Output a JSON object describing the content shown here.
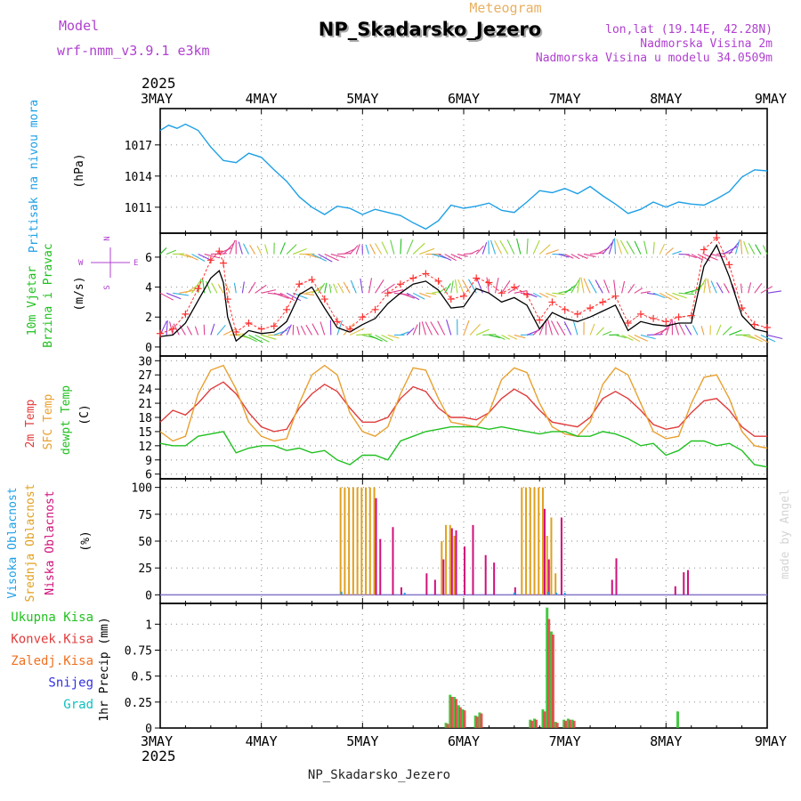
{
  "header": {
    "model_label": "Model",
    "model_name": "wrf-nmm_v3.9.1 e3km",
    "meteogram_label": "Meteogram",
    "station": "NP_Skadarsko_Jezero",
    "lonlat": "lon,lat (19.14E, 42.28N)",
    "elevation": "Nadmorska Visina 2m",
    "model_elevation": "Nadmorska Visina u modelu 34.0509m",
    "year": "2025",
    "footer_station": "NP_Skadarsko_Jezero",
    "credit": "made by Angel"
  },
  "colors": {
    "pressure": "#1ea0e6",
    "wind_speed": "#000000",
    "wind_gust": "#ff3030",
    "temp2m": "#e03c3c",
    "sfc_temp": "#e8a030",
    "dewpoint": "#20c020",
    "cloud_high": "#1ea0e6",
    "cloud_mid": "#e0a020",
    "cloud_low": "#d0107a",
    "precip_total": "#22c022",
    "precip_conv": "#e03c3c",
    "precip_frozen": "#f07020",
    "precip_snow": "#3030e0",
    "precip_graupel": "#10c0c0",
    "model_text": "#b040d0",
    "meteogram_text": "#e8b060",
    "grid": "#999999"
  },
  "x_axis": {
    "days": [
      "3MAY",
      "4MAY",
      "5MAY",
      "6MAY",
      "7MAY",
      "8MAY",
      "9MAY"
    ]
  },
  "chart_data": [
    {
      "type": "line",
      "panel": "pressure",
      "ylabel_main": "Pritisak na nivou mora",
      "ylabel_unit": "(hPa)",
      "yticks": [
        1011,
        1014,
        1017
      ],
      "ylim": [
        1008.5,
        1020.5
      ],
      "series": [
        {
          "name": "MSLP",
          "hours": [
            0,
            2,
            4,
            6,
            9,
            12,
            15,
            18,
            21,
            24,
            27,
            30,
            33,
            36,
            39,
            42,
            45,
            48,
            51,
            54,
            57,
            60,
            63,
            66,
            69,
            72,
            75,
            78,
            81,
            84,
            87,
            90,
            93,
            96,
            99,
            102,
            105,
            108,
            111,
            114,
            117,
            120,
            123,
            126,
            129,
            132,
            135,
            138,
            141,
            144
          ],
          "values": [
            1018.4,
            1018.9,
            1018.6,
            1019.0,
            1018.4,
            1016.8,
            1015.5,
            1015.3,
            1016.2,
            1015.8,
            1014.6,
            1013.5,
            1012.0,
            1011.0,
            1010.3,
            1011.1,
            1010.9,
            1010.3,
            1010.8,
            1010.5,
            1010.2,
            1009.5,
            1008.9,
            1009.7,
            1011.2,
            1010.9,
            1011.1,
            1011.4,
            1010.7,
            1010.5,
            1011.5,
            1012.6,
            1012.4,
            1012.8,
            1012.3,
            1013.0,
            1012.1,
            1011.3,
            1010.4,
            1010.8,
            1011.5,
            1011.0,
            1011.5,
            1011.3,
            1011.2,
            1011.8,
            1012.5,
            1013.9,
            1014.6,
            1014.5
          ]
        }
      ]
    },
    {
      "type": "line",
      "panel": "wind",
      "ylabel_main": "10m Vjetar",
      "ylabel_main2": "Brzina i Pravac",
      "ylabel_unit": "(m/s)",
      "compass": {
        "n": "N",
        "w": "W",
        "e": "E",
        "s": "S"
      },
      "yticks": [
        0,
        2,
        4,
        6
      ],
      "ylim": [
        -0.6,
        7.6
      ],
      "series": [
        {
          "name": "Wind speed",
          "hours": [
            0,
            3,
            6,
            9,
            12,
            14,
            15,
            16,
            18,
            21,
            24,
            27,
            30,
            33,
            36,
            39,
            42,
            45,
            48,
            51,
            54,
            57,
            60,
            63,
            66,
            69,
            72,
            75,
            78,
            81,
            84,
            87,
            90,
            93,
            96,
            99,
            102,
            105,
            108,
            111,
            114,
            117,
            120,
            123,
            126,
            129,
            132,
            135,
            138,
            141,
            144
          ],
          "values": [
            0.7,
            0.8,
            1.6,
            3.1,
            4.6,
            5.1,
            4.3,
            2.0,
            0.4,
            1.1,
            0.9,
            1.0,
            1.7,
            3.5,
            4.0,
            2.6,
            1.3,
            1.0,
            1.5,
            1.9,
            2.9,
            3.6,
            4.2,
            4.4,
            3.8,
            2.6,
            2.7,
            3.9,
            3.6,
            3.0,
            3.3,
            2.8,
            1.2,
            2.3,
            1.9,
            1.7,
            2.0,
            2.4,
            2.8,
            1.1,
            1.7,
            1.5,
            1.4,
            1.6,
            1.6,
            5.4,
            6.8,
            4.7,
            2.1,
            1.2,
            1.0
          ]
        },
        {
          "name": "Wind gust",
          "hours": [
            0,
            3,
            6,
            9,
            12,
            14,
            15,
            16,
            18,
            21,
            24,
            27,
            30,
            33,
            36,
            39,
            42,
            45,
            48,
            51,
            54,
            57,
            60,
            63,
            66,
            69,
            72,
            75,
            78,
            81,
            84,
            87,
            90,
            93,
            96,
            99,
            102,
            105,
            108,
            111,
            114,
            117,
            120,
            123,
            126,
            129,
            132,
            135,
            138,
            141,
            144
          ],
          "values": [
            0.9,
            1.2,
            2.2,
            3.9,
            5.8,
            6.4,
            5.6,
            3.2,
            1.0,
            1.6,
            1.2,
            1.4,
            2.5,
            4.2,
            4.5,
            3.2,
            1.7,
            1.2,
            2.0,
            2.5,
            3.6,
            4.2,
            4.6,
            4.9,
            4.4,
            3.2,
            3.4,
            4.6,
            4.3,
            3.6,
            4.0,
            3.5,
            1.8,
            3.0,
            2.5,
            2.2,
            2.6,
            3.0,
            3.4,
            1.6,
            2.2,
            1.9,
            1.7,
            2.0,
            2.1,
            6.5,
            7.3,
            5.5,
            2.6,
            1.5,
            1.3
          ]
        }
      ]
    },
    {
      "type": "line",
      "panel": "temperature",
      "ylabel_main": "2m Temp",
      "ylabel_main2": "SFC Temp",
      "ylabel_main3": "dewpt Temp",
      "ylabel_unit": "(C)",
      "yticks": [
        6,
        9,
        12,
        15,
        18,
        21,
        24,
        27,
        30
      ],
      "ylim": [
        5,
        31
      ],
      "series": [
        {
          "name": "2m Temp",
          "hours": [
            0,
            3,
            6,
            9,
            12,
            15,
            18,
            21,
            24,
            27,
            30,
            33,
            36,
            39,
            42,
            45,
            48,
            51,
            54,
            57,
            60,
            63,
            66,
            69,
            72,
            75,
            78,
            81,
            84,
            87,
            90,
            93,
            96,
            99,
            102,
            105,
            108,
            111,
            114,
            117,
            120,
            123,
            126,
            129,
            132,
            135,
            138,
            141,
            144
          ],
          "values": [
            17,
            19.5,
            18.5,
            21,
            24,
            25.5,
            23,
            19,
            16,
            15,
            15.5,
            20,
            23,
            25,
            23.5,
            20,
            17,
            17,
            18,
            22,
            24.5,
            23.5,
            20,
            18,
            18,
            17.5,
            19,
            22,
            24,
            22.5,
            19.5,
            17,
            16.5,
            16,
            18,
            22,
            23.5,
            22,
            19.5,
            16.5,
            15.5,
            16,
            19,
            21.5,
            22,
            19.5,
            16,
            14,
            14
          ]
        },
        {
          "name": "SFC Temp",
          "hours": [
            0,
            3,
            6,
            9,
            12,
            15,
            18,
            21,
            24,
            27,
            30,
            33,
            36,
            39,
            42,
            45,
            48,
            51,
            54,
            57,
            60,
            63,
            66,
            69,
            72,
            75,
            78,
            81,
            84,
            87,
            90,
            93,
            96,
            99,
            102,
            105,
            108,
            111,
            114,
            117,
            120,
            123,
            126,
            129,
            132,
            135,
            138,
            141,
            144
          ],
          "values": [
            15,
            13,
            14,
            23,
            28,
            29,
            24,
            17,
            14,
            13,
            13.5,
            21,
            27,
            29,
            27,
            19,
            15,
            14,
            16,
            23,
            28.5,
            28,
            22,
            17,
            16.5,
            16,
            19,
            26,
            28.5,
            27.5,
            21,
            16,
            14.5,
            14,
            17,
            25,
            28.5,
            27,
            21,
            15,
            13.5,
            14,
            21,
            26.5,
            27,
            22,
            15,
            12,
            11.5
          ]
        },
        {
          "name": "dewpt Temp",
          "hours": [
            0,
            3,
            6,
            9,
            12,
            15,
            18,
            21,
            24,
            27,
            30,
            33,
            36,
            39,
            42,
            45,
            48,
            51,
            54,
            57,
            60,
            63,
            66,
            69,
            72,
            75,
            78,
            81,
            84,
            87,
            90,
            93,
            96,
            99,
            102,
            105,
            108,
            111,
            114,
            117,
            120,
            123,
            126,
            129,
            132,
            135,
            138,
            141,
            144
          ],
          "values": [
            12.5,
            12,
            12,
            14,
            14.5,
            15,
            10.5,
            11.5,
            12,
            12,
            11,
            11.5,
            10.5,
            11,
            9,
            8,
            10,
            10,
            9,
            13,
            14,
            15,
            15.5,
            16,
            16,
            16,
            15.5,
            16,
            15.5,
            15,
            14.5,
            15,
            15,
            14,
            14,
            15,
            14.5,
            13.5,
            12,
            12.5,
            10,
            11,
            13,
            13,
            12,
            12.5,
            11,
            8,
            7.5
          ]
        }
      ]
    },
    {
      "type": "bar",
      "panel": "clouds",
      "ylabel_main": "Visoka Oblacnost",
      "ylabel_main2": "Srednja Oblacnost",
      "ylabel_main3": "Niska Oblacnost",
      "ylabel_unit": "(%)",
      "yticks": [
        0,
        25,
        50,
        75,
        100
      ],
      "ylim": [
        -8,
        108
      ],
      "series": [
        {
          "name": "Srednja Oblacnost",
          "hours": [
            43,
            44,
            45,
            46,
            47,
            48,
            49,
            50,
            51,
            67,
            68,
            69,
            70,
            86,
            87,
            88,
            89,
            90,
            91,
            92,
            93,
            94
          ],
          "values": [
            100,
            100,
            100,
            100,
            100,
            100,
            100,
            100,
            100,
            50,
            65,
            65,
            55,
            100,
            100,
            100,
            100,
            100,
            100,
            55,
            72,
            20
          ]
        },
        {
          "name": "Niska Oblacnost",
          "hours": [
            51,
            52,
            55,
            57,
            63,
            65,
            67,
            69,
            70,
            72,
            74,
            77,
            79,
            84,
            91,
            92,
            95,
            107,
            108,
            122,
            124,
            125
          ],
          "values": [
            90,
            52,
            63,
            7,
            20,
            14,
            33,
            62,
            60,
            45,
            65,
            37,
            30,
            7,
            80,
            33,
            72,
            14,
            34,
            8,
            21,
            23
          ]
        },
        {
          "name": "Visoka Oblacnost",
          "hours": [
            43,
            58,
            84,
            92,
            94,
            96
          ],
          "values": [
            3,
            2,
            2,
            3,
            2,
            2
          ]
        }
      ]
    },
    {
      "type": "bar",
      "panel": "precipitation",
      "legend": [
        "Ukupna Kisa",
        "Konvek.Kisa",
        "Zaledj.Kisa",
        "Snijeg",
        "Grad"
      ],
      "ylabel_unit": "1hr Precip (mm)",
      "yticks": [
        0,
        0.25,
        0.5,
        0.75,
        1
      ],
      "ylim": [
        0,
        1.2
      ],
      "series": [
        {
          "name": "Ukupna Kisa",
          "hours": [
            68,
            69,
            70,
            71,
            72,
            75,
            76,
            88,
            89,
            91,
            92,
            93,
            94,
            96,
            97,
            98,
            123
          ],
          "values": [
            0.05,
            0.32,
            0.3,
            0.22,
            0.18,
            0.12,
            0.15,
            0.08,
            0.09,
            0.18,
            1.16,
            0.93,
            0.06,
            0.08,
            0.09,
            0.08,
            0.16
          ]
        },
        {
          "name": "Konvek.Kisa",
          "hours": [
            68,
            69,
            70,
            71,
            72,
            75,
            76,
            88,
            89,
            91,
            92,
            93,
            94,
            96,
            97,
            98
          ],
          "values": [
            0.04,
            0.3,
            0.28,
            0.2,
            0.17,
            0.11,
            0.14,
            0.07,
            0.08,
            0.16,
            1.05,
            0.9,
            0.05,
            0.07,
            0.08,
            0.07
          ]
        }
      ]
    }
  ]
}
